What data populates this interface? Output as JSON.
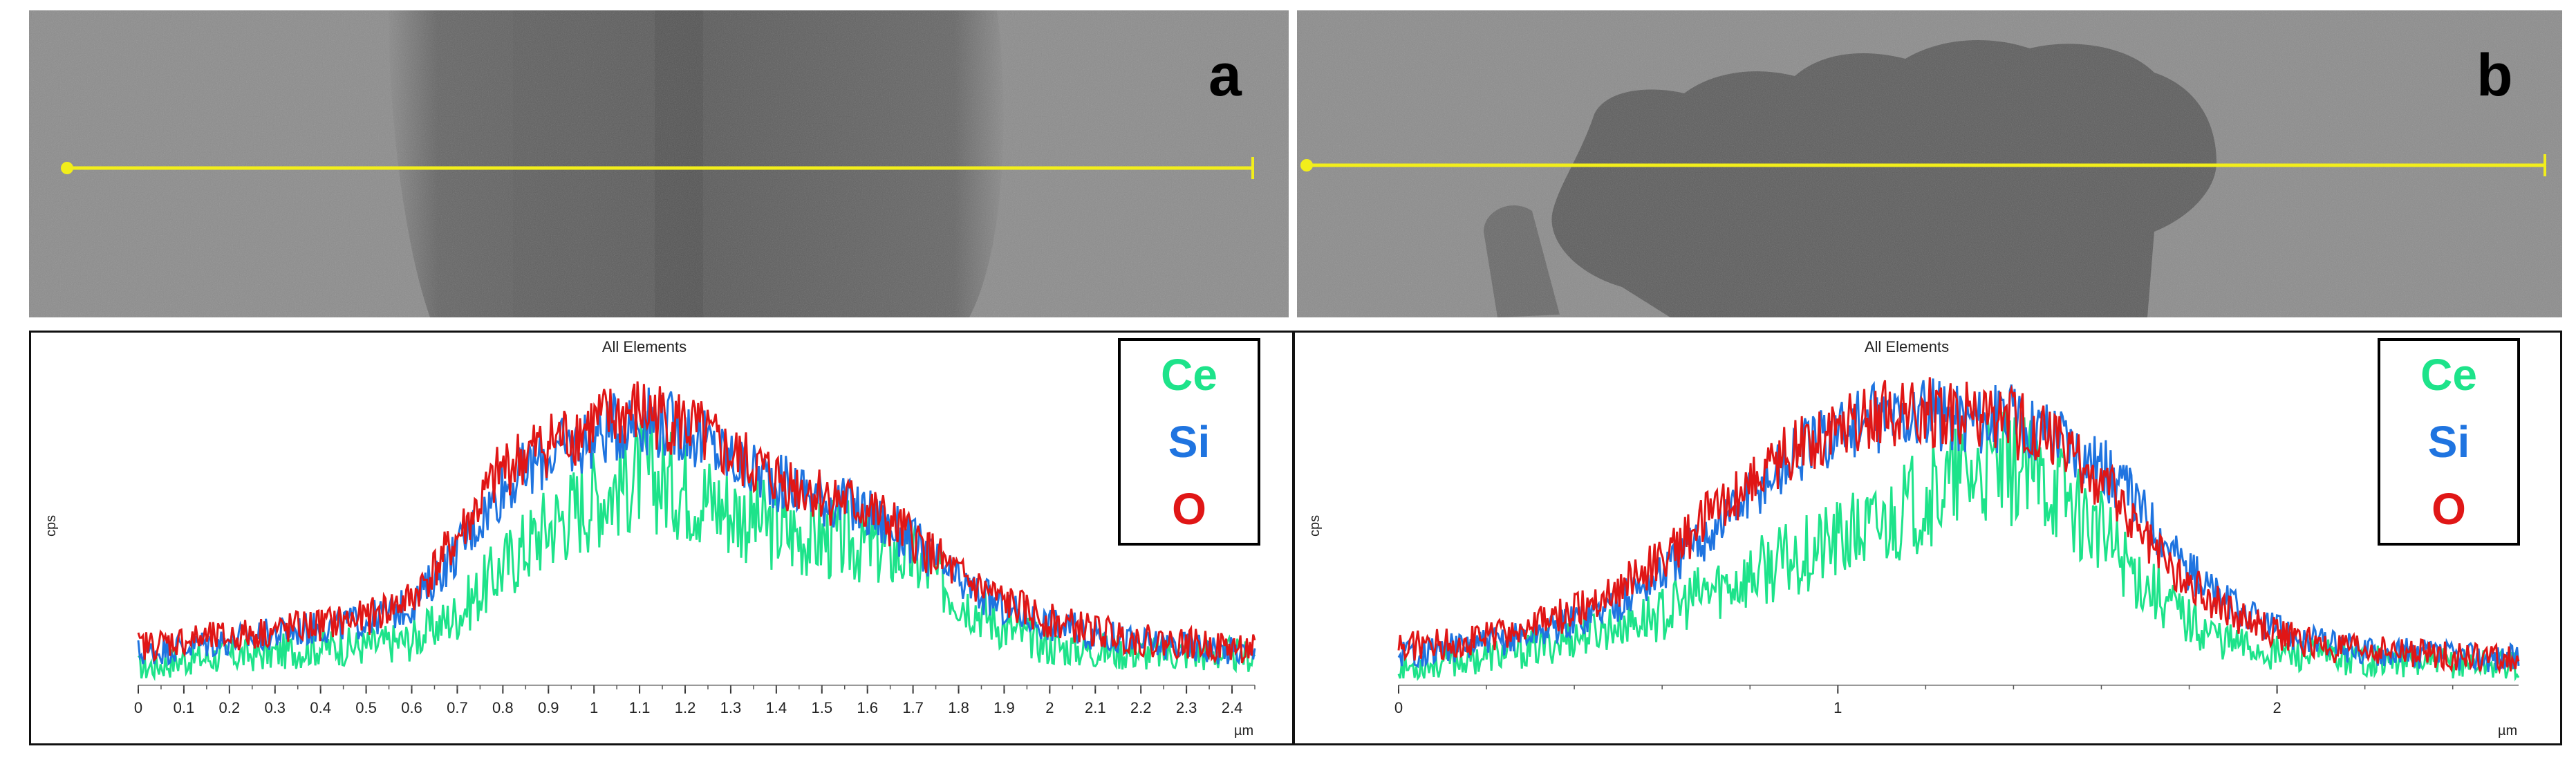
{
  "panels": [
    {
      "letter": "a"
    },
    {
      "letter": "b"
    }
  ],
  "legend": [
    {
      "label": "Ce",
      "color": "#1de38a"
    },
    {
      "label": "Si",
      "color": "#1f74e0"
    },
    {
      "label": "O",
      "color": "#e01616"
    }
  ],
  "chart_data": [
    {
      "type": "line",
      "title": "All Elements",
      "xlabel": "µm",
      "ylabel": "cps",
      "xlim": [
        0,
        2.45
      ],
      "ylim": [
        0,
        100
      ],
      "grid": false,
      "legend": "top-right",
      "x_ticks": [
        "0",
        "0.1",
        "0.2",
        "0.3",
        "0.4",
        "0.5",
        "0.6",
        "0.7",
        "0.8",
        "0.9",
        "1",
        "1.1",
        "1.2",
        "1.3",
        "1.4",
        "1.5",
        "1.6",
        "1.7",
        "1.8",
        "1.9",
        "2",
        "2.1",
        "2.2",
        "2.3",
        "2.4"
      ],
      "series": [
        {
          "name": "Ce",
          "color": "#1de38a",
          "x": [
            0,
            0.1,
            0.2,
            0.3,
            0.4,
            0.5,
            0.6,
            0.7,
            0.8,
            0.9,
            1.0,
            1.1,
            1.2,
            1.3,
            1.4,
            1.5,
            1.6,
            1.7,
            1.8,
            1.9,
            2.0,
            2.1,
            2.2,
            2.3,
            2.45
          ],
          "values": [
            3,
            6,
            7,
            8,
            10,
            10,
            12,
            20,
            35,
            48,
            57,
            64,
            60,
            53,
            47,
            44,
            42,
            38,
            26,
            16,
            10,
            9,
            8,
            8,
            7
          ]
        },
        {
          "name": "Si",
          "color": "#1f74e0",
          "x": [
            0,
            0.1,
            0.2,
            0.3,
            0.4,
            0.5,
            0.6,
            0.7,
            0.8,
            0.9,
            1.0,
            1.1,
            1.2,
            1.3,
            1.4,
            1.5,
            1.6,
            1.7,
            1.8,
            1.9,
            2.0,
            2.1,
            2.2,
            2.3,
            2.45
          ],
          "values": [
            8,
            10,
            12,
            14,
            16,
            18,
            23,
            40,
            60,
            70,
            76,
            82,
            78,
            69,
            62,
            57,
            52,
            43,
            30,
            22,
            17,
            14,
            11,
            10,
            8
          ]
        },
        {
          "name": "O",
          "color": "#e01616",
          "x": [
            0,
            0.1,
            0.2,
            0.3,
            0.4,
            0.5,
            0.6,
            0.7,
            0.8,
            0.9,
            1.0,
            1.1,
            1.2,
            1.3,
            1.4,
            1.5,
            1.6,
            1.7,
            1.8,
            1.9,
            2.0,
            2.1,
            2.2,
            2.3,
            2.45
          ],
          "values": [
            10,
            12,
            13,
            15,
            17,
            19,
            25,
            44,
            66,
            74,
            80,
            84,
            80,
            70,
            63,
            58,
            53,
            44,
            32,
            24,
            18,
            15,
            12,
            11,
            9
          ]
        }
      ]
    },
    {
      "type": "line",
      "title": "All Elements",
      "xlabel": "µm",
      "ylabel": "cps",
      "xlim": [
        0,
        2.55
      ],
      "ylim": [
        0,
        100
      ],
      "grid": false,
      "legend": "top-right",
      "x_ticks": [
        "0",
        "1",
        "2"
      ],
      "series": [
        {
          "name": "Ce",
          "color": "#1de38a",
          "x": [
            0,
            0.1,
            0.2,
            0.3,
            0.4,
            0.5,
            0.6,
            0.7,
            0.8,
            0.9,
            1.0,
            1.1,
            1.2,
            1.3,
            1.4,
            1.5,
            1.6,
            1.7,
            1.8,
            1.9,
            2.0,
            2.1,
            2.2,
            2.3,
            2.4,
            2.55
          ],
          "values": [
            3,
            5,
            7,
            9,
            13,
            17,
            20,
            27,
            32,
            38,
            43,
            48,
            57,
            64,
            66,
            60,
            45,
            30,
            18,
            11,
            8,
            7,
            6,
            5,
            5,
            4
          ]
        },
        {
          "name": "Si",
          "color": "#1f74e0",
          "x": [
            0,
            0.1,
            0.2,
            0.3,
            0.4,
            0.5,
            0.6,
            0.7,
            0.8,
            0.9,
            1.0,
            1.1,
            1.2,
            1.3,
            1.4,
            1.5,
            1.6,
            1.7,
            1.8,
            1.9,
            2.0,
            2.1,
            2.2,
            2.3,
            2.4,
            2.55
          ],
          "values": [
            8,
            9,
            11,
            14,
            18,
            24,
            33,
            45,
            58,
            70,
            78,
            82,
            83,
            82,
            81,
            78,
            67,
            52,
            34,
            22,
            15,
            11,
            9,
            8,
            7,
            6
          ]
        },
        {
          "name": "O",
          "color": "#e01616",
          "x": [
            0,
            0.1,
            0.2,
            0.3,
            0.4,
            0.5,
            0.6,
            0.7,
            0.8,
            0.9,
            1.0,
            1.1,
            1.2,
            1.3,
            1.4,
            1.5,
            1.6,
            1.7,
            1.8,
            1.9,
            2.0,
            2.1,
            2.2,
            2.3,
            2.4,
            2.55
          ],
          "values": [
            10,
            11,
            13,
            16,
            21,
            28,
            38,
            50,
            62,
            72,
            80,
            84,
            84,
            82,
            80,
            74,
            62,
            45,
            30,
            20,
            14,
            10,
            9,
            8,
            7,
            6
          ]
        }
      ]
    }
  ]
}
